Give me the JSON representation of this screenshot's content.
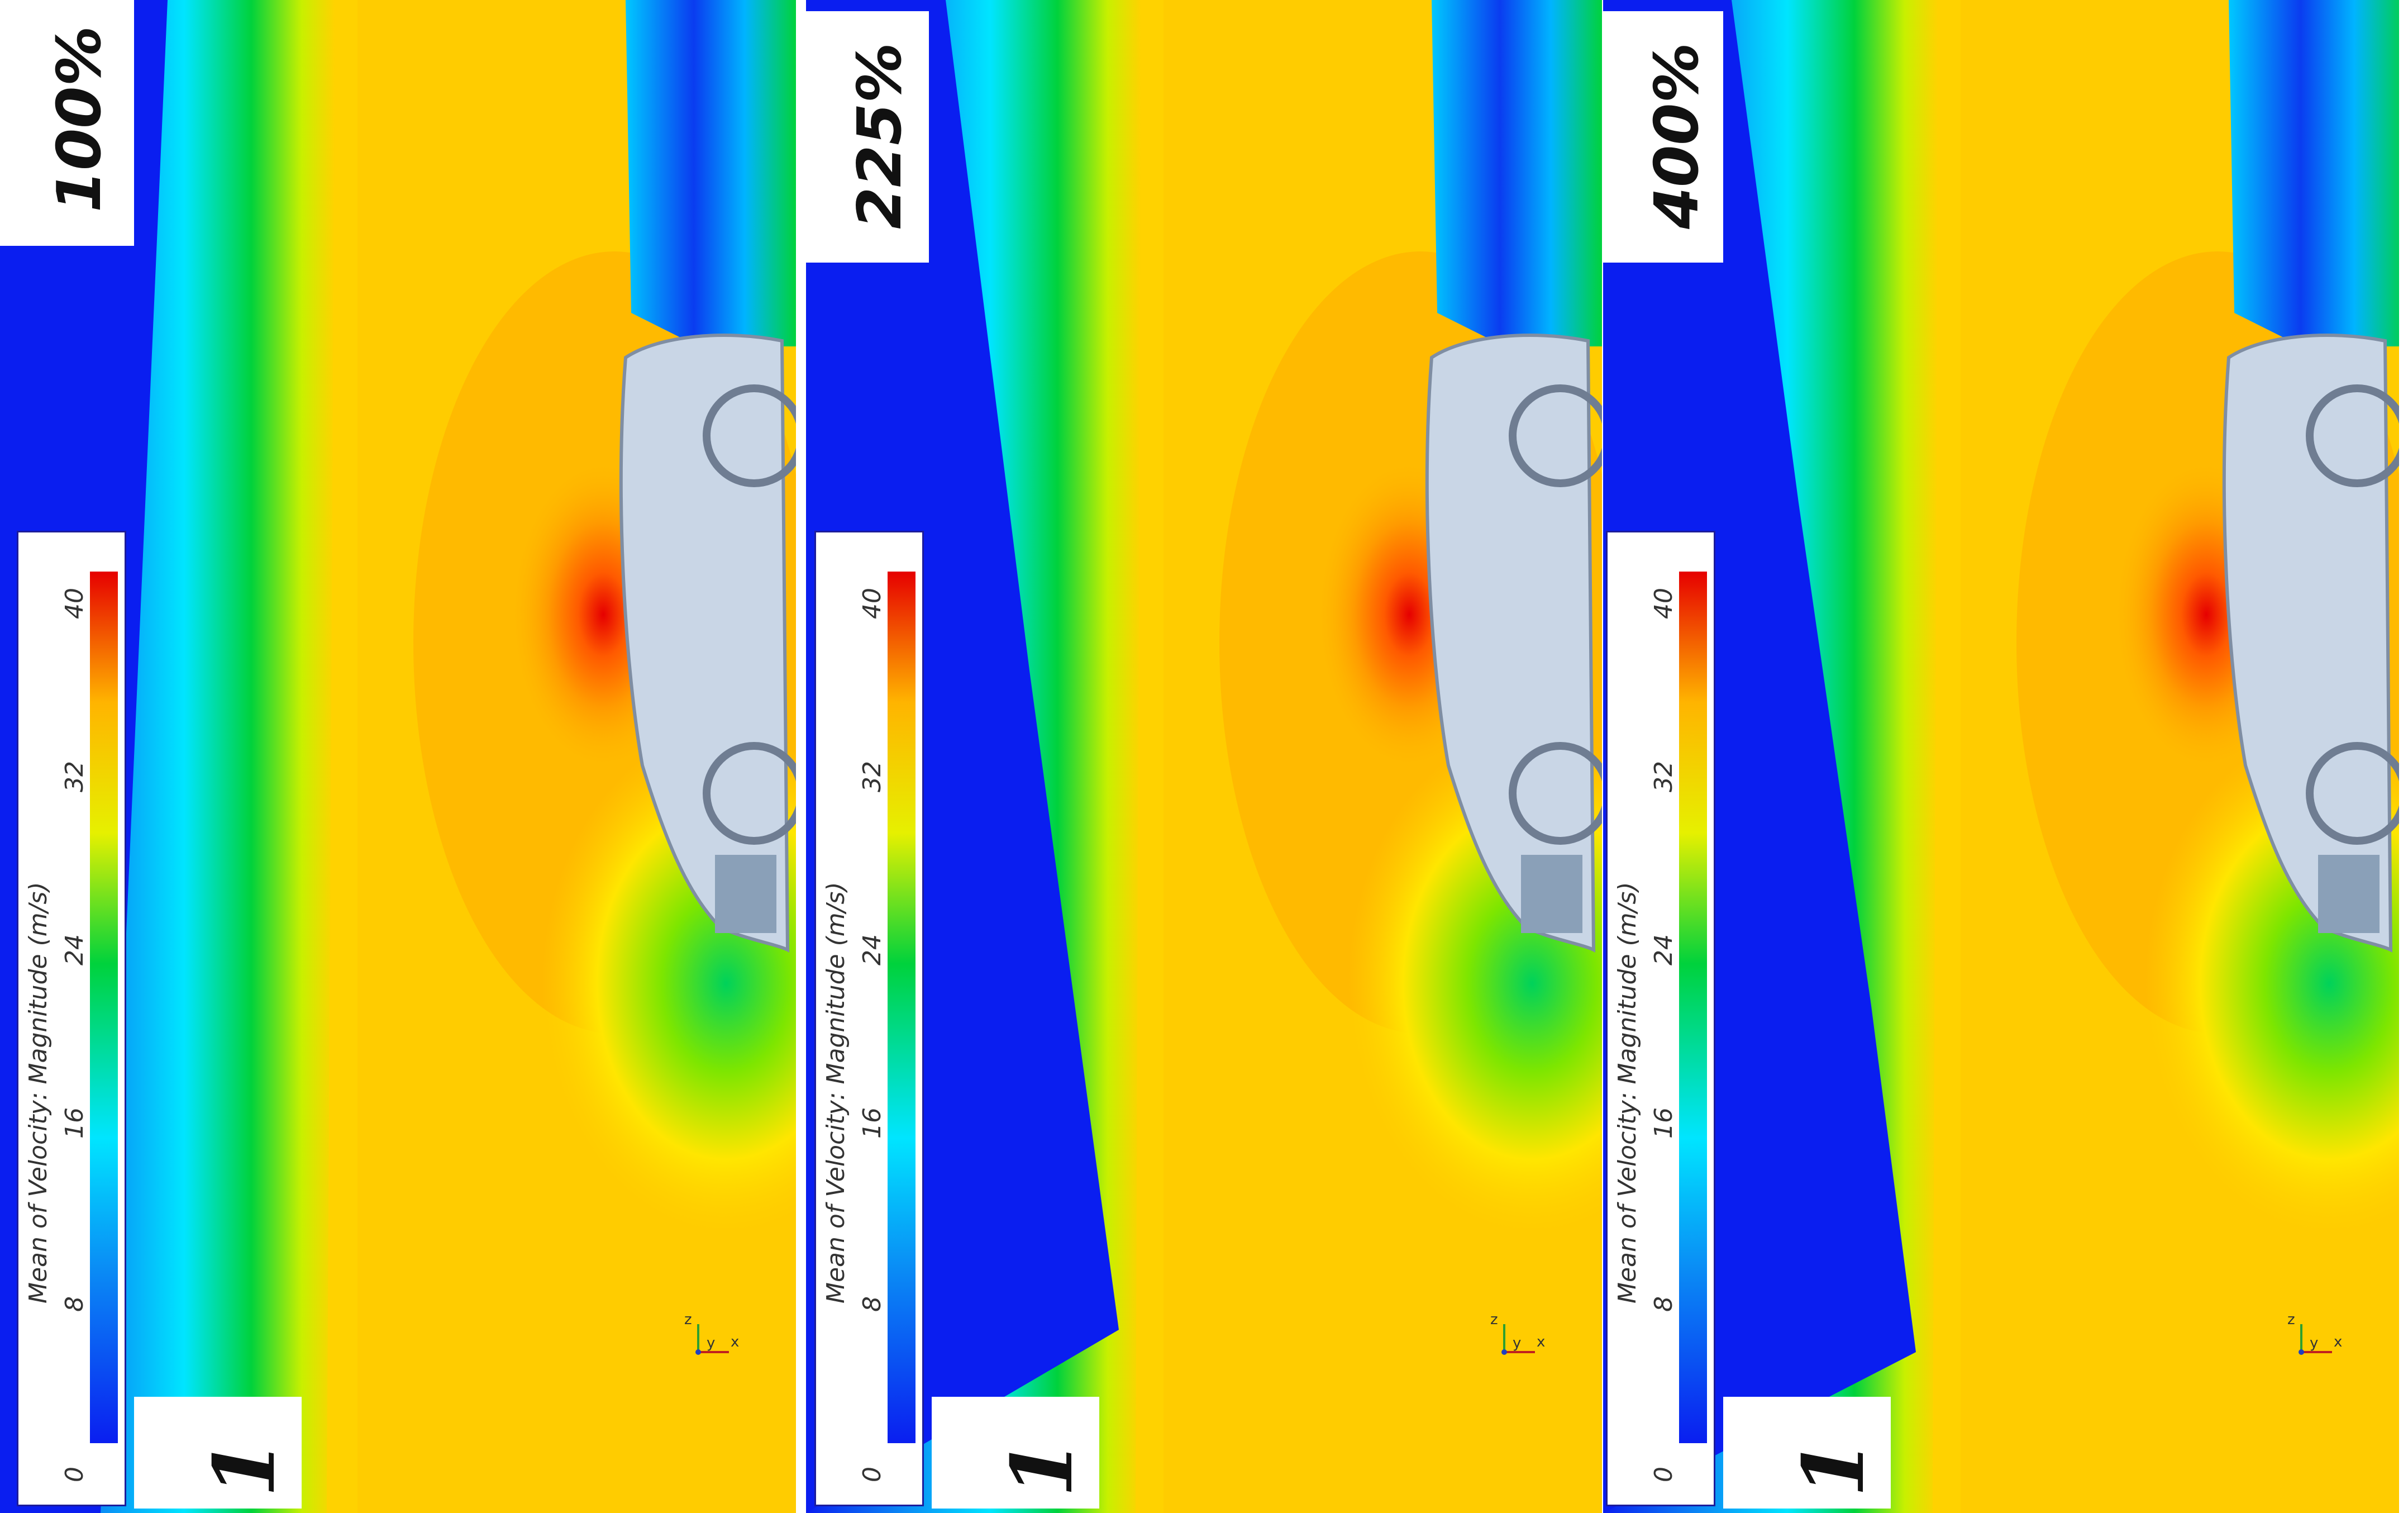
{
  "panels": [
    {
      "id": "panel-1",
      "percent_label": "100%",
      "case_label": "1"
    },
    {
      "id": "panel-2",
      "percent_label": "225%",
      "case_label": "1"
    },
    {
      "id": "panel-3",
      "percent_label": "400%",
      "case_label": "1"
    }
  ],
  "colorbar": {
    "title": "Mean of Velocity: Magnitude (m/s)",
    "ticks": [
      "0",
      "8",
      "16",
      "24",
      "32",
      "40"
    ],
    "min": 0,
    "max": 40
  },
  "axis_triad": {
    "x": "x",
    "y": "y",
    "z": "z"
  },
  "colors": {
    "low": "#0a1ef0",
    "cyan": "#00e5ff",
    "green": "#00d23c",
    "yellow": "#ffe600",
    "orange": "#ffb400",
    "red": "#e60000",
    "car_body": "#c9d6e6"
  }
}
